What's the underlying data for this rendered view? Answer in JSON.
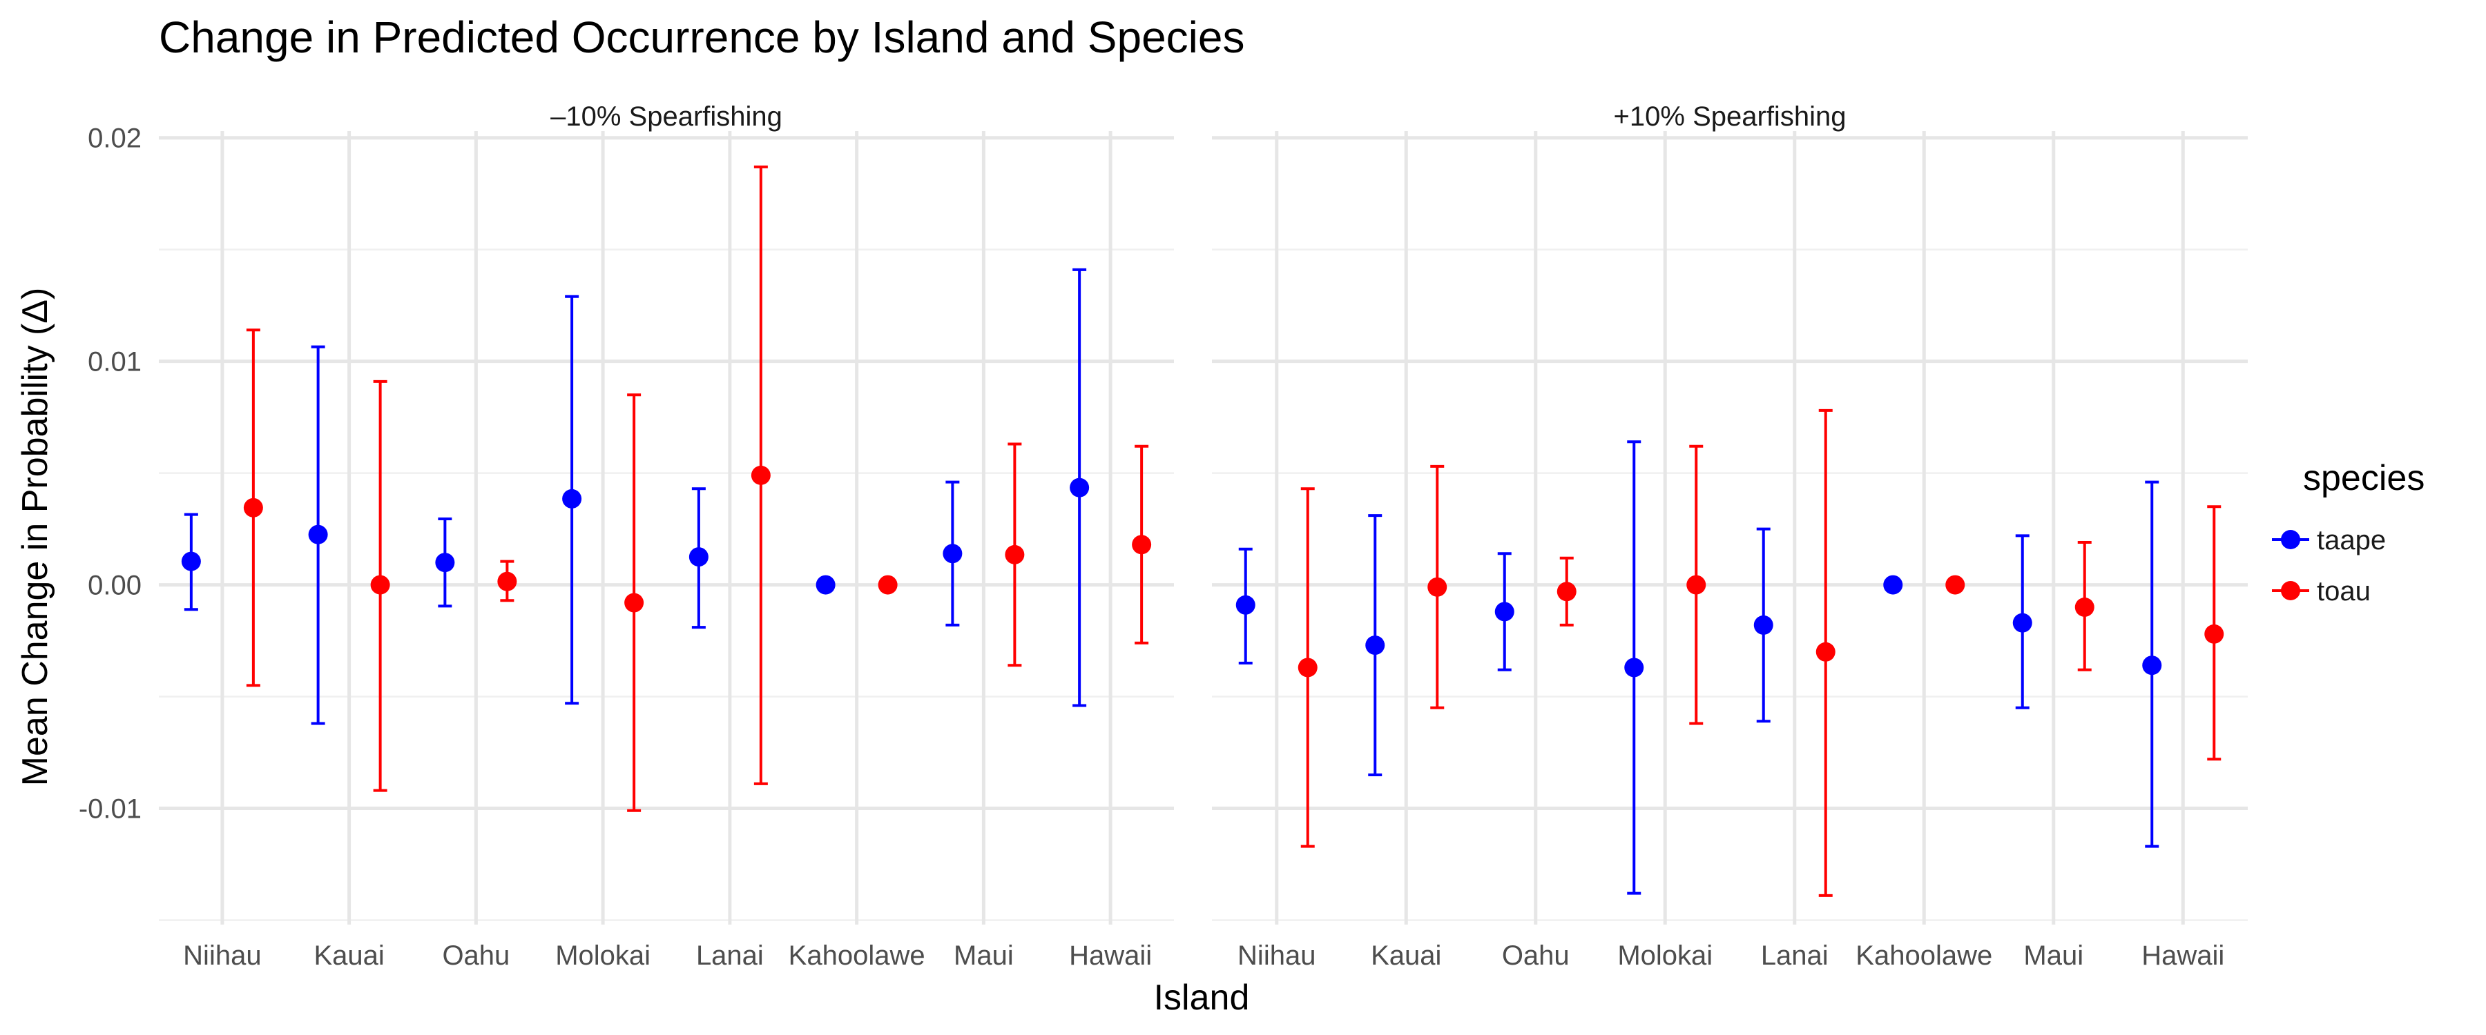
{
  "chart_data": {
    "type": "scatter",
    "title": "Change in Predicted Occurrence by Island and Species",
    "xlabel": "Island",
    "ylabel": "Mean Change in Probability (Δ)",
    "ylim": [
      -0.0152,
      0.0203
    ],
    "y_ticks": [
      0.02,
      0.01,
      0.0,
      -0.01
    ],
    "y_tick_labels": [
      "0.02",
      "0.01",
      "0.00",
      "-0.01"
    ],
    "categories": [
      "Niihau",
      "Kauai",
      "Oahu",
      "Molokai",
      "Lanai",
      "Kahoolawe",
      "Maui",
      "Hawaii"
    ],
    "legend": {
      "title": "species",
      "position": "right"
    },
    "colors": {
      "taape": "#0000ff",
      "toau": "#ff0000"
    },
    "grid": true,
    "panels": [
      {
        "strip_label": "–10% Spearfishing",
        "series": [
          {
            "name": "taape",
            "points": [
              {
                "x": "Niihau",
                "mean": 0.00105,
                "lower": -0.0011,
                "upper": 0.00315
              },
              {
                "x": "Kauai",
                "mean": 0.00225,
                "lower": -0.0062,
                "upper": 0.01065
              },
              {
                "x": "Oahu",
                "mean": 0.001,
                "lower": -0.00095,
                "upper": 0.00295
              },
              {
                "x": "Molokai",
                "mean": 0.00385,
                "lower": -0.0053,
                "upper": 0.0129
              },
              {
                "x": "Lanai",
                "mean": 0.00125,
                "lower": -0.0019,
                "upper": 0.0043
              },
              {
                "x": "Kahoolawe",
                "mean": 0.0,
                "lower": 0.0,
                "upper": 0.0
              },
              {
                "x": "Maui",
                "mean": 0.0014,
                "lower": -0.0018,
                "upper": 0.0046
              },
              {
                "x": "Hawaii",
                "mean": 0.00435,
                "lower": -0.0054,
                "upper": 0.0141
              }
            ]
          },
          {
            "name": "toau",
            "points": [
              {
                "x": "Niihau",
                "mean": 0.00345,
                "lower": -0.0045,
                "upper": 0.0114
              },
              {
                "x": "Kauai",
                "mean": 0.0,
                "lower": -0.0092,
                "upper": 0.0091
              },
              {
                "x": "Oahu",
                "mean": 0.00015,
                "lower": -0.0007,
                "upper": 0.00105
              },
              {
                "x": "Molokai",
                "mean": -0.0008,
                "lower": -0.0101,
                "upper": 0.0085
              },
              {
                "x": "Lanai",
                "mean": 0.0049,
                "lower": -0.0089,
                "upper": 0.0187
              },
              {
                "x": "Kahoolawe",
                "mean": 0.0,
                "lower": 0.0,
                "upper": 0.0
              },
              {
                "x": "Maui",
                "mean": 0.00135,
                "lower": -0.0036,
                "upper": 0.0063
              },
              {
                "x": "Hawaii",
                "mean": 0.0018,
                "lower": -0.0026,
                "upper": 0.0062
              }
            ]
          }
        ]
      },
      {
        "strip_label": "+10% Spearfishing",
        "series": [
          {
            "name": "taape",
            "points": [
              {
                "x": "Niihau",
                "mean": -0.0009,
                "lower": -0.0035,
                "upper": 0.0016
              },
              {
                "x": "Kauai",
                "mean": -0.0027,
                "lower": -0.0085,
                "upper": 0.0031
              },
              {
                "x": "Oahu",
                "mean": -0.0012,
                "lower": -0.0038,
                "upper": 0.0014
              },
              {
                "x": "Molokai",
                "mean": -0.0037,
                "lower": -0.0138,
                "upper": 0.0064
              },
              {
                "x": "Lanai",
                "mean": -0.0018,
                "lower": -0.0061,
                "upper": 0.0025
              },
              {
                "x": "Kahoolawe",
                "mean": 0.0,
                "lower": 0.0,
                "upper": 0.0
              },
              {
                "x": "Maui",
                "mean": -0.0017,
                "lower": -0.0055,
                "upper": 0.0022
              },
              {
                "x": "Hawaii",
                "mean": -0.0036,
                "lower": -0.0117,
                "upper": 0.0046
              }
            ]
          },
          {
            "name": "toau",
            "points": [
              {
                "x": "Niihau",
                "mean": -0.0037,
                "lower": -0.0117,
                "upper": 0.0043
              },
              {
                "x": "Kauai",
                "mean": -0.0001,
                "lower": -0.0055,
                "upper": 0.0053
              },
              {
                "x": "Oahu",
                "mean": -0.0003,
                "lower": -0.0018,
                "upper": 0.0012
              },
              {
                "x": "Molokai",
                "mean": 0.0,
                "lower": -0.0062,
                "upper": 0.0062
              },
              {
                "x": "Lanai",
                "mean": -0.003,
                "lower": -0.0139,
                "upper": 0.0078
              },
              {
                "x": "Kahoolawe",
                "mean": 0.0,
                "lower": 0.0,
                "upper": 0.0
              },
              {
                "x": "Maui",
                "mean": -0.001,
                "lower": -0.0038,
                "upper": 0.0019
              },
              {
                "x": "Hawaii",
                "mean": -0.0022,
                "lower": -0.0078,
                "upper": 0.0035
              }
            ]
          }
        ]
      }
    ]
  }
}
